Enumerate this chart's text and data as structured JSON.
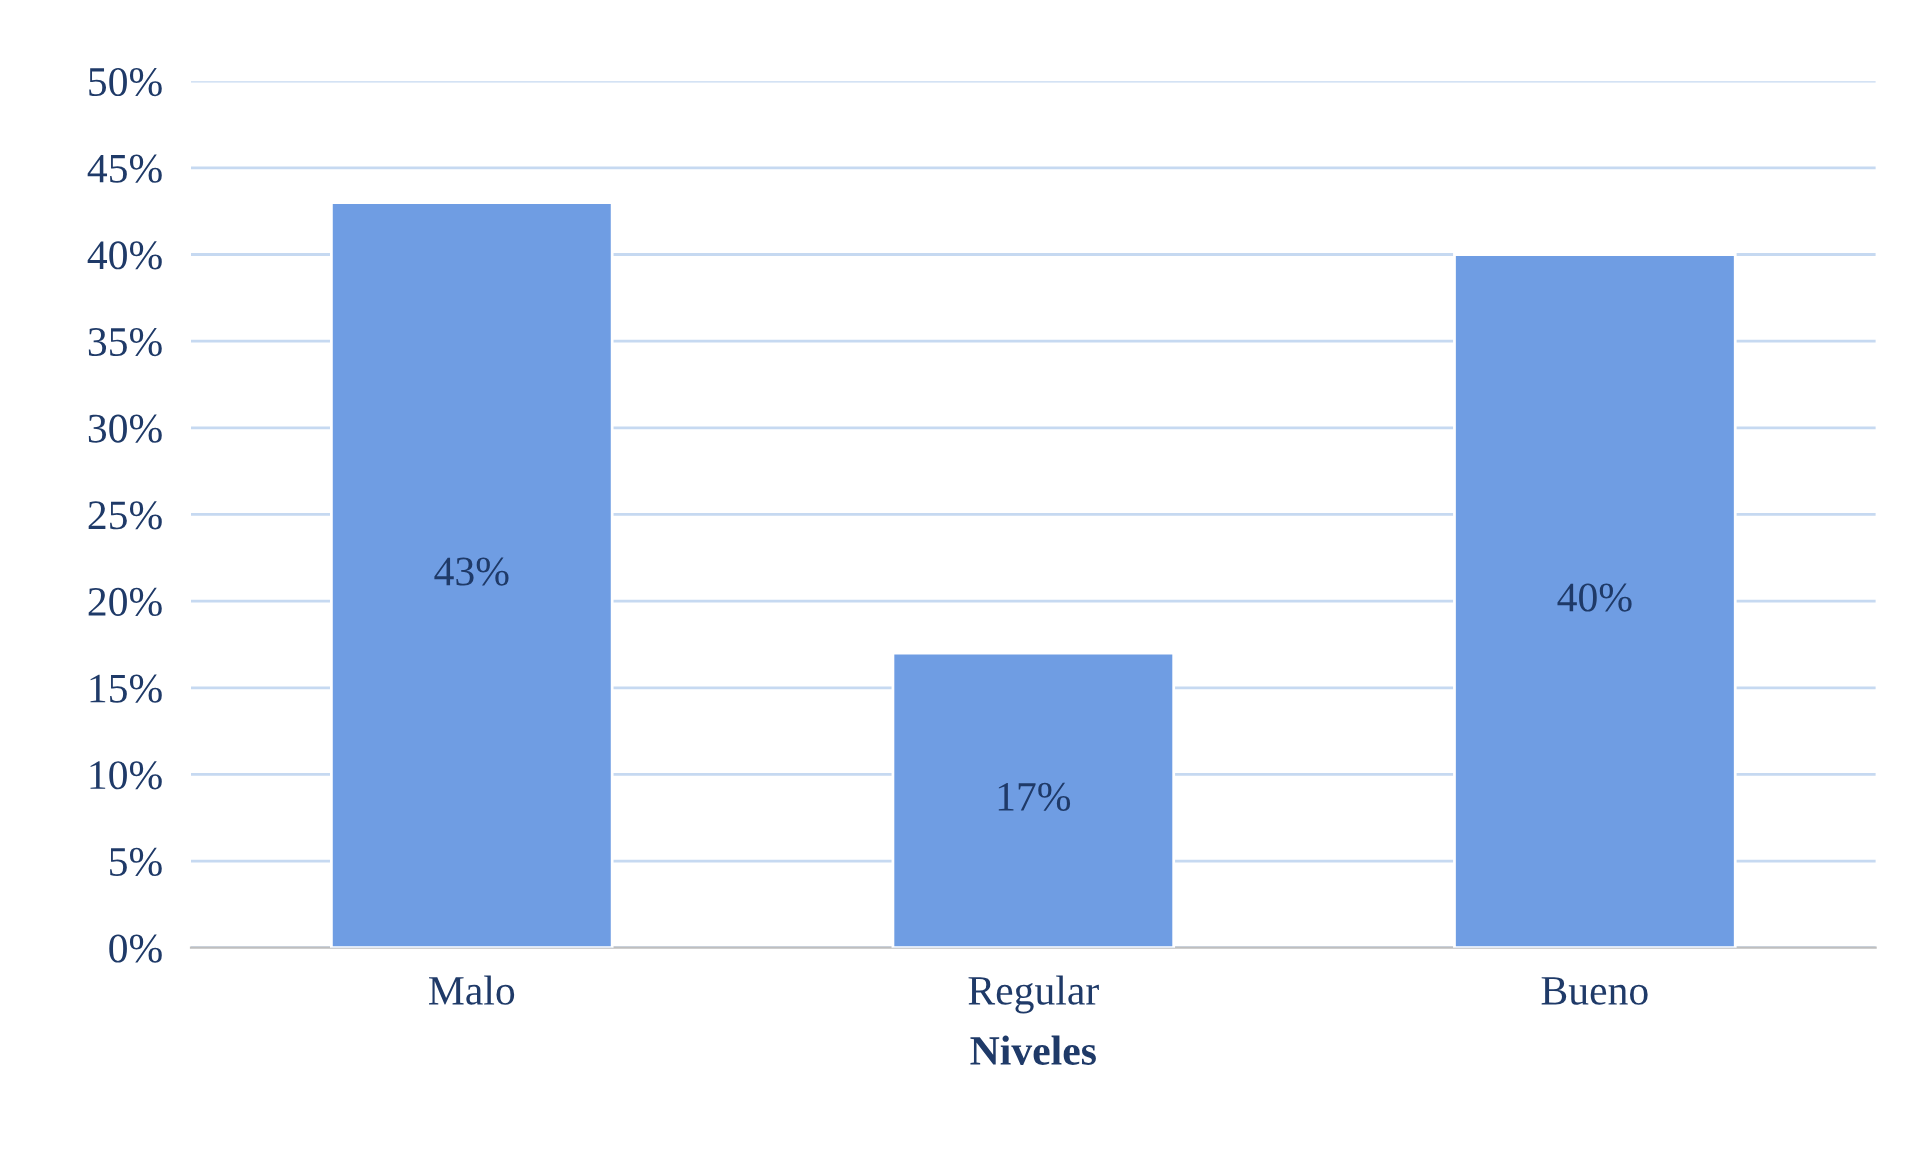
{
  "chart_data": {
    "type": "bar",
    "xlabel": "Niveles",
    "categories": [
      "Malo",
      "Regular",
      "Bueno"
    ],
    "values": [
      43,
      17,
      40
    ],
    "value_labels": [
      "43%",
      "17%",
      "40%"
    ],
    "color": "#6f9de3",
    "ylim": [
      0,
      50
    ],
    "yticks": [
      {
        "value": 0,
        "label": "0%"
      },
      {
        "value": 5,
        "label": "5%"
      },
      {
        "value": 10,
        "label": "10%"
      },
      {
        "value": 15,
        "label": "15%"
      },
      {
        "value": 20,
        "label": "20%"
      },
      {
        "value": 25,
        "label": "25%"
      },
      {
        "value": 30,
        "label": "30%"
      },
      {
        "value": 35,
        "label": "35%"
      },
      {
        "value": 40,
        "label": "40%"
      },
      {
        "value": 45,
        "label": "45%"
      },
      {
        "value": 50,
        "label": "50%"
      }
    ],
    "grid": "y"
  }
}
